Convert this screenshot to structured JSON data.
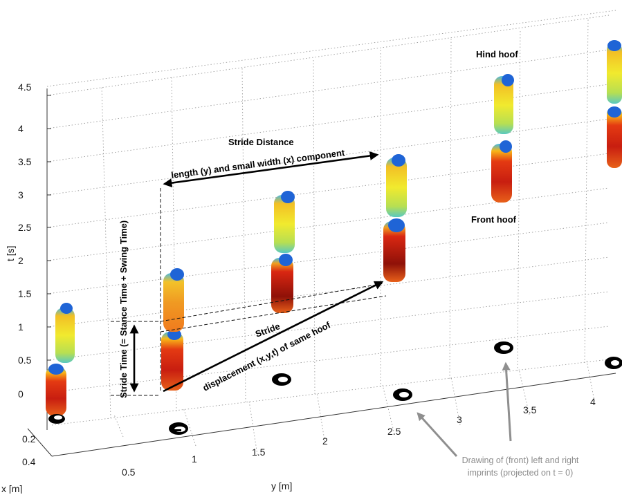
{
  "axes": {
    "t_label": "t [s]",
    "y_label": "y [m]",
    "x_label": "x [m]",
    "t_ticks": [
      "0",
      "0.5",
      "1",
      "1.5",
      "2",
      "2.5",
      "3",
      "3.5",
      "4",
      "4.5"
    ],
    "y_ticks": [
      "0.5",
      "1",
      "1.5",
      "2",
      "2.5",
      "3",
      "3.5",
      "4"
    ],
    "x_ticks": [
      "0.2",
      "0.4"
    ]
  },
  "annotations": {
    "hind_hoof": "Hind hoof",
    "front_hoof": "Front hoof",
    "stride_distance": "Stride Distance",
    "stride_distance_sub": "length (y) and small width (x) component",
    "stride_time": "Stride Time   (= Stance Time + Swing Time)",
    "stride": "Stride",
    "stride_sub": "displacement (x,y,t) of same hoof",
    "imprints_line1": "Drawing of (front) left and right",
    "imprints_line2": "imprints (projected on t = 0)"
  },
  "colors": {
    "arrow": "#000000",
    "gray_arrow": "#8f8f8f",
    "imprint_text": "#8c8c8c"
  }
}
